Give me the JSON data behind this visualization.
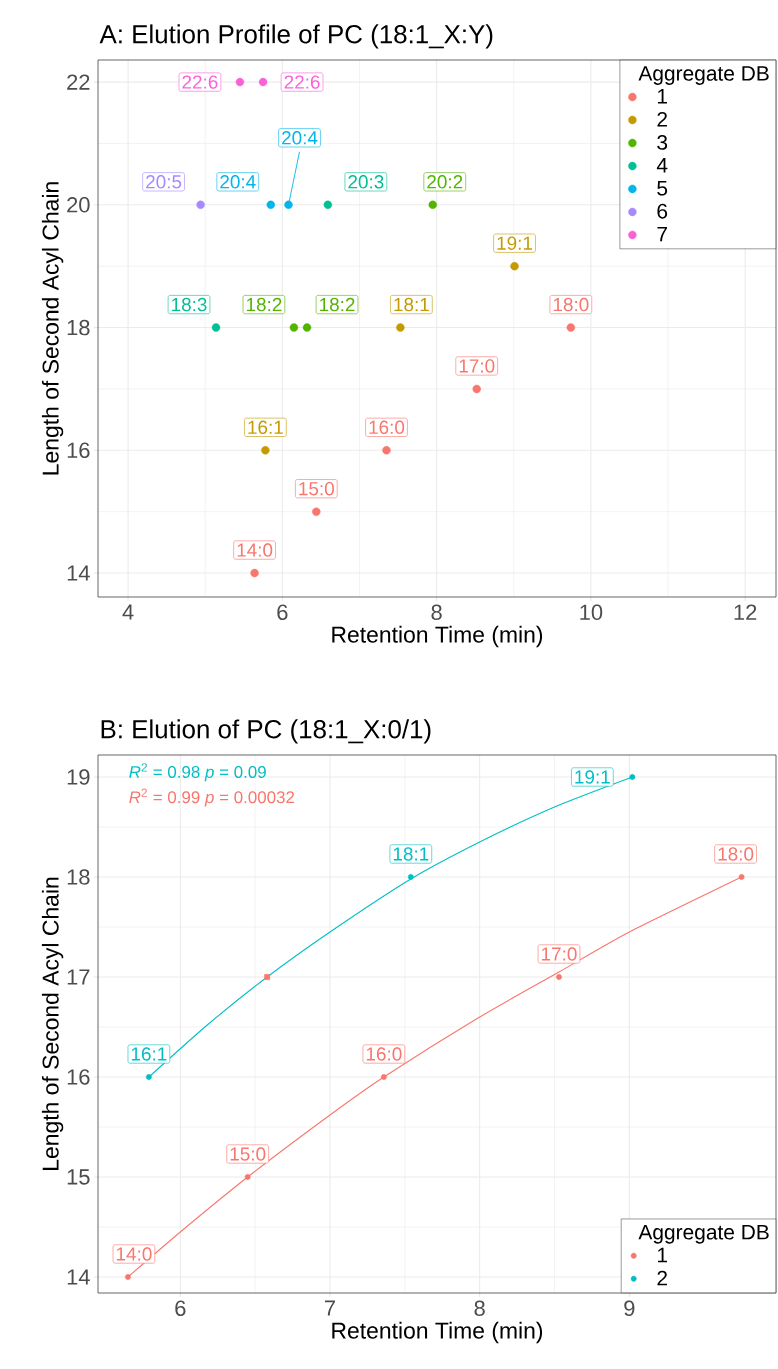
{
  "chart_data": [
    {
      "type": "scatter",
      "title": "A: Elution Profile of PC (18:1_X:Y)",
      "xlabel": "Retention Time (min)",
      "ylabel": "Length of Second Acyl Chain",
      "legend_title": "Aggregate DB",
      "xlim": [
        3.61,
        12.4
      ],
      "ylim": [
        13.61,
        22.36
      ],
      "xticks": [
        4,
        6,
        8,
        10,
        12
      ],
      "yticks": [
        14,
        16,
        18,
        20,
        22
      ],
      "grid": true,
      "legend": "top right",
      "marker": "circle",
      "series": [
        {
          "name": "1",
          "color": "#f8766d",
          "x": [
            5.64,
            6.44,
            7.35,
            8.52,
            9.74
          ],
          "values": [
            14,
            15,
            16,
            17,
            18
          ],
          "value_labels": [
            "14:0",
            "15:0",
            "16:0",
            "17:0",
            "18:0"
          ]
        },
        {
          "name": "2",
          "color": "#c49a00",
          "x": [
            5.78,
            7.53,
            9.01
          ],
          "values": [
            16,
            18,
            19
          ],
          "value_labels": [
            "16:1",
            "18:1",
            "19:1"
          ]
        },
        {
          "name": "3",
          "color": "#53b400",
          "x": [
            6.15,
            6.32,
            7.95
          ],
          "values": [
            18,
            18,
            20
          ],
          "value_labels": [
            "18:2",
            "18:2",
            "20:2"
          ]
        },
        {
          "name": "4",
          "color": "#00c094",
          "x": [
            5.14,
            6.59
          ],
          "values": [
            18,
            20
          ],
          "value_labels": [
            "18:3",
            "20:3"
          ]
        },
        {
          "name": "5",
          "color": "#00b6eb",
          "x": [
            5.85,
            6.08
          ],
          "values": [
            20,
            20
          ],
          "value_labels": [
            "20:4",
            "20:4"
          ]
        },
        {
          "name": "6",
          "color": "#a58aff",
          "x": [
            4.94
          ],
          "values": [
            20
          ],
          "value_labels": [
            "20:5"
          ]
        },
        {
          "name": "7",
          "color": "#fb61d7",
          "x": [
            5.45,
            5.75
          ],
          "values": [
            22,
            22
          ],
          "value_labels": [
            "22:6",
            "22:6"
          ]
        }
      ]
    },
    {
      "type": "scatter",
      "title": "B: Elution of PC (18:1_X:0/1)",
      "xlabel": "Retention Time (min)",
      "ylabel": "Length of Second Acyl Chain",
      "legend_title": "Aggregate DB",
      "xlim": [
        5.45,
        9.98
      ],
      "ylim": [
        13.84,
        19.22
      ],
      "xticks": [
        6,
        7,
        8,
        9
      ],
      "yticks": [
        14,
        15,
        16,
        17,
        18,
        19
      ],
      "grid": true,
      "legend": "bottom right",
      "marker": "circle",
      "annotations": [
        "*R*$^{2}$ = 0.98  *p* = 0.09",
        "*R*$^{2}$ = 0.99  *p* = 0.00032"
      ],
      "series": [
        {
          "name": "1",
          "color": "#f8766d",
          "x": [
            5.65,
            6.45,
            7.36,
            8.53,
            9.75
          ],
          "values": [
            14,
            15,
            16,
            17,
            18
          ],
          "value_labels": [
            "14:0",
            "15:0",
            "16:0",
            "17:0",
            "18:0"
          ]
        },
        {
          "name": "2",
          "color": "#00bfc4",
          "x": [
            5.79,
            7.54,
            9.02
          ],
          "values": [
            16,
            18,
            19
          ],
          "value_labels": [
            "16:1",
            "18:1",
            "19:1"
          ]
        },
        {
          "type": "line",
          "marker": "none",
          "color": "#00bfc4",
          "x": [
            5.79,
            6.18,
            6.58,
            7.0,
            7.54,
            8.0,
            8.5,
            9.02
          ],
          "values": [
            16.0,
            16.52,
            17.0,
            17.45,
            17.98,
            18.35,
            18.7,
            19.0
          ]
        },
        {
          "type": "line",
          "marker": "none",
          "color": "#f8766d",
          "x": [
            5.65,
            6.0,
            6.45,
            7.0,
            7.36,
            8.0,
            8.53,
            9.0,
            9.75
          ],
          "values": [
            14.0,
            14.45,
            15.0,
            15.62,
            16.0,
            16.6,
            17.05,
            17.45,
            18.0
          ]
        },
        {
          "type": "scatter",
          "marker": "square",
          "color": "#f8766d",
          "x": [
            6.58
          ],
          "values": [
            17
          ]
        }
      ]
    }
  ]
}
